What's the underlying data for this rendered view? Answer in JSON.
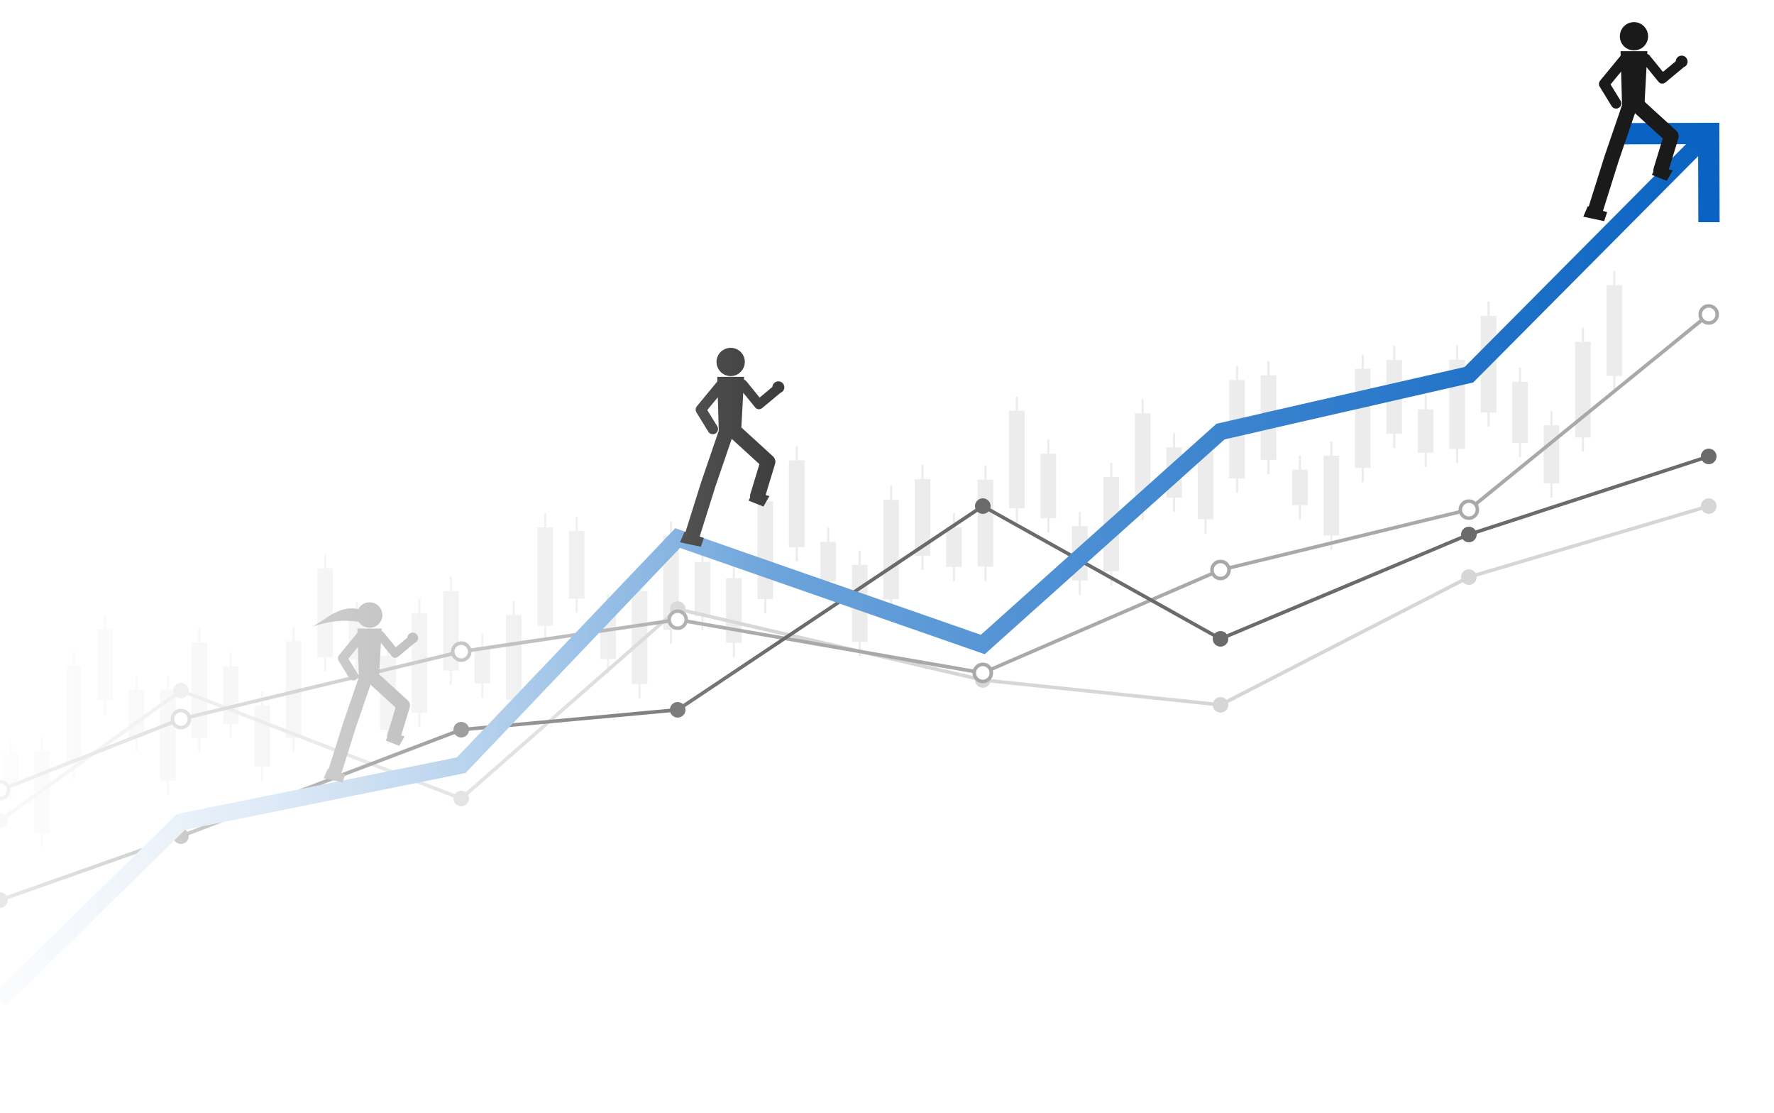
{
  "chart_data": {
    "type": "line",
    "title": "",
    "xlabel": "",
    "ylabel": "",
    "grid": false,
    "legend": "none",
    "xlim": [
      0,
      2500
    ],
    "ylim": [
      0,
      1568
    ],
    "x": [
      0,
      255,
      650,
      955,
      1385,
      1720,
      2070,
      2408
    ],
    "series": [
      {
        "role": "main-trend",
        "color": "#0a63c2",
        "color_start": "#dde8f5",
        "values": [
          160,
          410,
          490,
          810,
          660,
          960,
          1040,
          1380
        ],
        "arrowhead": true
      },
      {
        "role": "light-gray-filled-markers",
        "color": "#d6d6d6",
        "marker": "filled",
        "values": [
          412,
          595,
          443,
          710,
          610,
          575,
          755,
          855
        ]
      },
      {
        "role": "gray-open-markers",
        "color": "#a9a9a9",
        "marker": "open",
        "values": [
          455,
          555,
          650,
          695,
          620,
          765,
          850,
          1125
        ]
      },
      {
        "role": "dark-gray-filled-markers",
        "color": "#6b6b6b",
        "marker": "filled",
        "values": [
          300,
          390,
          540,
          568,
          855,
          668,
          815,
          925
        ]
      }
    ],
    "candlesticks": {
      "color": "#ececec",
      "count": 52
    },
    "figures": [
      {
        "role": "runner",
        "icon": "running-woman-icon",
        "color": "#9a9a9a"
      },
      {
        "role": "runner",
        "icon": "running-man-icon",
        "color": "#3d3d3d"
      },
      {
        "role": "runner",
        "icon": "running-man-icon",
        "color": "#1a1a1a"
      }
    ]
  }
}
